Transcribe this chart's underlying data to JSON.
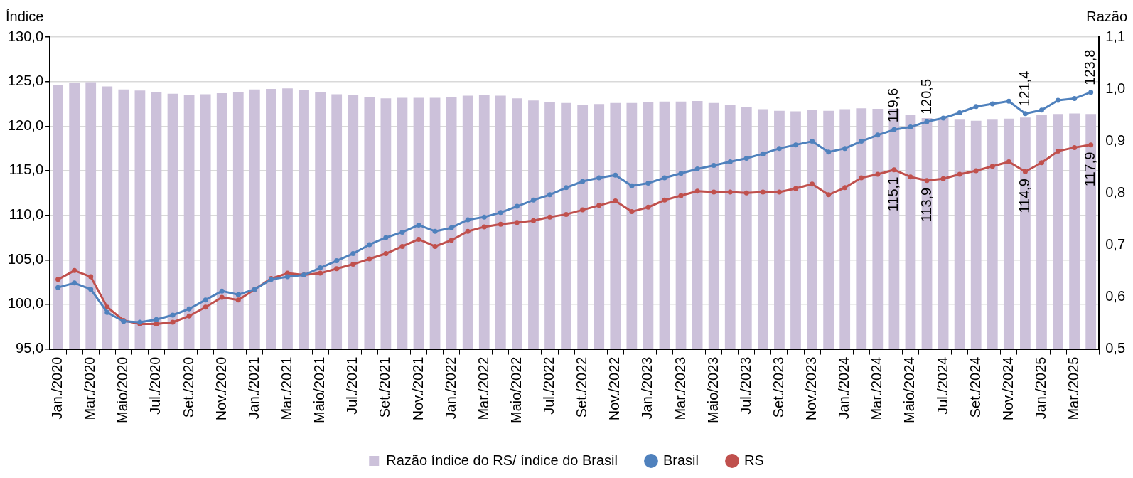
{
  "chart_data": {
    "type": "bar",
    "ylabel": "Índice",
    "y2label": "Razão",
    "categories": [
      "Jan./2020",
      null,
      "Mar./2020",
      null,
      "Maio/2020",
      null,
      "Jul./2020",
      null,
      "Set./2020",
      null,
      "Nov./2020",
      null,
      "Jan./2021",
      null,
      "Mar./2021",
      null,
      "Maio/2021",
      null,
      "Jul./2021",
      null,
      "Set./2021",
      null,
      "Nov./2021",
      null,
      "Jan./2022",
      null,
      "Mar./2022",
      null,
      "Maio/2022",
      null,
      "Jul./2022",
      null,
      "Set./2022",
      null,
      "Nov./2022",
      null,
      "Jan./2023",
      null,
      "Mar./2023",
      null,
      "Maio/2023",
      null,
      "Jul./2023",
      null,
      "Set./2023",
      null,
      "Nov./2023",
      null,
      "Jan./2024",
      null,
      "Mar./2024",
      null,
      "Maio/2024",
      null,
      "Jul./2024",
      null,
      "Set./2024",
      null,
      "Nov./2024",
      null,
      "Jan./2025",
      null,
      "Mar./2025",
      null
    ],
    "series": [
      {
        "name": "Razão índice do RS/ índice do Brasil",
        "axis": "y2",
        "color": "#ccc1da",
        "values": [
          1.008,
          1.012,
          1.013,
          1.005,
          0.999,
          0.997,
          0.994,
          0.991,
          0.989,
          0.99,
          0.992,
          0.994,
          0.999,
          1.0,
          1.001,
          0.998,
          0.994,
          0.99,
          0.988,
          0.984,
          0.982,
          0.983,
          0.983,
          0.983,
          0.985,
          0.987,
          0.988,
          0.987,
          0.982,
          0.978,
          0.975,
          0.973,
          0.97,
          0.971,
          0.973,
          0.973,
          0.974,
          0.976,
          0.976,
          0.977,
          0.973,
          0.969,
          0.965,
          0.961,
          0.958,
          0.957,
          0.959,
          0.958,
          0.961,
          0.963,
          0.962,
          0.962,
          0.951,
          0.944,
          0.944,
          0.941,
          0.939,
          0.941,
          0.943,
          0.945,
          0.951,
          0.952,
          0.953,
          0.952
        ]
      },
      {
        "name": "Brasil",
        "type": "line",
        "color": "#4f81bd",
        "values": [
          101.9,
          102.4,
          101.7,
          99.1,
          98.1,
          98.0,
          98.3,
          98.8,
          99.5,
          100.5,
          101.5,
          101.1,
          101.7,
          102.8,
          103.1,
          103.3,
          104.1,
          104.9,
          105.7,
          106.7,
          107.5,
          108.1,
          108.9,
          108.2,
          108.6,
          109.5,
          109.8,
          110.3,
          111.0,
          111.7,
          112.3,
          113.1,
          113.8,
          114.2,
          114.5,
          113.3,
          113.6,
          114.2,
          114.7,
          115.2,
          115.6,
          116.0,
          116.4,
          116.9,
          117.5,
          117.9,
          118.3,
          117.1,
          117.5,
          118.3,
          119.0,
          119.6,
          119.9,
          120.5,
          120.9,
          121.5,
          122.2,
          122.5,
          122.8,
          121.4,
          121.8,
          122.9,
          123.1,
          123.8
        ],
        "value_labels": [
          null,
          null,
          null,
          null,
          null,
          null,
          null,
          null,
          null,
          null,
          null,
          null,
          null,
          null,
          null,
          null,
          null,
          null,
          null,
          null,
          null,
          null,
          null,
          null,
          null,
          null,
          null,
          null,
          null,
          null,
          null,
          null,
          null,
          null,
          null,
          null,
          null,
          null,
          null,
          null,
          null,
          null,
          null,
          null,
          null,
          null,
          null,
          null,
          null,
          null,
          null,
          "119,6",
          null,
          "120,5",
          null,
          null,
          null,
          null,
          null,
          "121,4",
          null,
          null,
          null,
          "123,8"
        ]
      },
      {
        "name": "RS",
        "type": "line",
        "color": "#c0504d",
        "values": [
          102.8,
          103.8,
          103.1,
          99.7,
          98.2,
          97.8,
          97.8,
          98.0,
          98.7,
          99.7,
          100.8,
          100.5,
          101.7,
          102.9,
          103.5,
          103.3,
          103.5,
          104.0,
          104.5,
          105.1,
          105.7,
          106.5,
          107.3,
          106.5,
          107.2,
          108.2,
          108.7,
          109.0,
          109.2,
          109.4,
          109.8,
          110.1,
          110.6,
          111.1,
          111.6,
          110.4,
          110.9,
          111.7,
          112.2,
          112.7,
          112.6,
          112.6,
          112.5,
          112.6,
          112.6,
          113.0,
          113.5,
          112.3,
          113.1,
          114.2,
          114.6,
          115.1,
          114.3,
          113.9,
          114.1,
          114.6,
          115.0,
          115.5,
          116.0,
          114.9,
          115.9,
          117.2,
          117.6,
          117.9
        ],
        "value_labels": [
          null,
          null,
          null,
          null,
          null,
          null,
          null,
          null,
          null,
          null,
          null,
          null,
          null,
          null,
          null,
          null,
          null,
          null,
          null,
          null,
          null,
          null,
          null,
          null,
          null,
          null,
          null,
          null,
          null,
          null,
          null,
          null,
          null,
          null,
          null,
          null,
          null,
          null,
          null,
          null,
          null,
          null,
          null,
          null,
          null,
          null,
          null,
          null,
          null,
          null,
          null,
          "115,1",
          null,
          "113,9",
          null,
          null,
          null,
          null,
          null,
          "114,9",
          null,
          null,
          null,
          "117,9"
        ]
      }
    ],
    "ylim": [
      95,
      130
    ],
    "yticks": [
      {
        "value": 95,
        "label": "95,0"
      },
      {
        "value": 100,
        "label": "100,0"
      },
      {
        "value": 105,
        "label": "105,0"
      },
      {
        "value": 110,
        "label": "110,0"
      },
      {
        "value": 115,
        "label": "115,0"
      },
      {
        "value": 120,
        "label": "120,0"
      },
      {
        "value": 125,
        "label": "125,0"
      },
      {
        "value": 130,
        "label": "130,0"
      }
    ],
    "y2lim": [
      0.5,
      1.1
    ],
    "y2ticks": [
      {
        "value": 0.5,
        "label": "0,5"
      },
      {
        "value": 0.6,
        "label": "0,6"
      },
      {
        "value": 0.7,
        "label": "0,7"
      },
      {
        "value": 0.8,
        "label": "0,8"
      },
      {
        "value": 0.9,
        "label": "0,9"
      },
      {
        "value": 1.0,
        "label": "1,0"
      },
      {
        "value": 1.1,
        "label": "1,1"
      }
    ],
    "grid": "y",
    "legend": "bottom",
    "marker": "circle"
  }
}
